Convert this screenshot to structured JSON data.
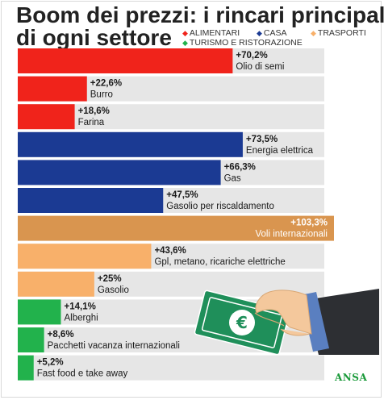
{
  "header": {
    "title_line1": "Boom dei prezzi: i rincari principali",
    "title_line2": "di ogni settore"
  },
  "legend": [
    {
      "label": "ALIMENTARI",
      "color": "#f0231b"
    },
    {
      "label": "CASA",
      "color": "#1b3a93"
    },
    {
      "label": "TRASPORTI",
      "color": "#f8b06a"
    },
    {
      "label": "TURISMO E RISTORAZIONE",
      "color": "#22b24c"
    }
  ],
  "chart_data": {
    "type": "bar",
    "orientation": "horizontal",
    "title": "Boom dei prezzi: i rincari principali di ogni settore",
    "categories": [
      "Olio di semi",
      "Burro",
      "Farina",
      "Energia elettrica",
      "Gas",
      "Gasolio per riscaldamento",
      "Voli internazionali",
      "Gpl, metano, ricariche elettriche",
      "Gasolio",
      "Alberghi",
      "Pacchetti vacanza internazionali",
      "Fast food e take away"
    ],
    "values": [
      70.2,
      22.6,
      18.6,
      73.5,
      66.3,
      47.5,
      103.3,
      43.6,
      25,
      14.1,
      8.6,
      5.2
    ],
    "value_labels": [
      "+70,2%",
      "+22,6%",
      "+18,6%",
      "+73,5%",
      "+66,3%",
      "+47,5%",
      "+103,3%",
      "+43,6%",
      "+25%",
      "+14,1%",
      "+8,6%",
      "+5,2%"
    ],
    "groups": [
      "ALIMENTARI",
      "ALIMENTARI",
      "ALIMENTARI",
      "CASA",
      "CASA",
      "CASA",
      "TRASPORTI",
      "TRASPORTI",
      "TRASPORTI",
      "TURISMO E RISTORAZIONE",
      "TURISMO E RISTORAZIONE",
      "TURISMO E RISTORAZIONE"
    ],
    "xlim": [
      0,
      103.3
    ],
    "track_color": "#e6e6e6",
    "highlight_color": "#d9954f",
    "highlight_index": 6
  },
  "illustration": {
    "icon": "hand-holding-euro-banknote-icon",
    "symbol": "€"
  },
  "footer": {
    "source": "ANSA"
  }
}
